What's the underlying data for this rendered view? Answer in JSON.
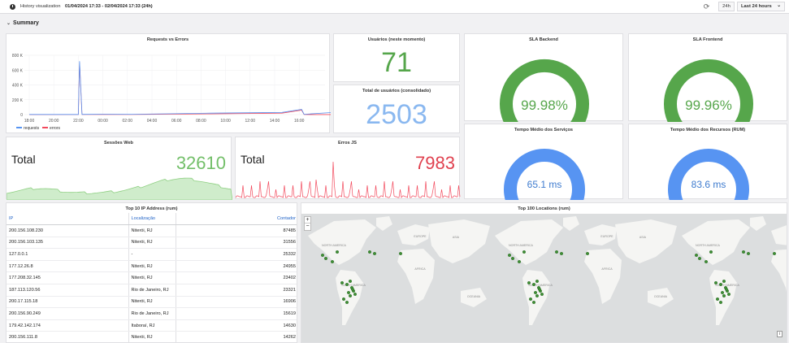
{
  "topbar": {
    "label": "History visualization",
    "range": "01/04/2024 17:33 - 02/04/2024 17:33 (24h)",
    "btn_24h": "24h",
    "btn_last": "Last 24 hours",
    "chevron": "⌄"
  },
  "summary": {
    "title": "Summary",
    "chevron": "⌄"
  },
  "panels": {
    "requests_vs_errors": {
      "title": "Requests vs Errors"
    },
    "usuarios": {
      "title": "Usuários (neste momento)",
      "value": "71",
      "color": "#56a64b"
    },
    "total_usuarios": {
      "title": "Total de usuários (consolidado)",
      "value": "2503",
      "color": "#8ab8f0"
    },
    "sla_backend": {
      "title": "SLA Backend",
      "value": "99.98%",
      "gauge_fraction": 0.9998,
      "color": "#56a64b"
    },
    "sla_frontend": {
      "title": "SLA Frontend",
      "value": "99.96%",
      "gauge_fraction": 0.9996,
      "color": "#56a64b"
    },
    "sessoes_web": {
      "title": "Sessões Web",
      "label": "Total",
      "value": "32610",
      "color": "#73bf69"
    },
    "erros_js": {
      "title": "Erros JS",
      "label": "Total",
      "value": "7983",
      "color": "#e0414f"
    },
    "tempo_servicos": {
      "title": "Tempo Médio dos Serviços",
      "value": "65.1 ms",
      "color": "#5794f2"
    },
    "tempo_recursos": {
      "title": "Tempo Médio dos Recursos (RUM)",
      "value": "83.6 ms",
      "color": "#5794f2"
    },
    "top_ip": {
      "title": "Top 10 IP Address (rum)",
      "columns": [
        "IP",
        "Localização",
        "Contador"
      ],
      "rows": [
        [
          "200.156.108.230",
          "Niterói, RJ",
          "87485"
        ],
        [
          "200.156.103.135",
          "Niterói, RJ",
          "31556"
        ],
        [
          "127.0.0.1",
          "-",
          "25332"
        ],
        [
          "177.12.26.8",
          "Niterói, RJ",
          "24955"
        ],
        [
          "177.208.32.145",
          "Niterói, RJ",
          "23402"
        ],
        [
          "187.113.120.56",
          "Rio de Janeiro, RJ",
          "23321"
        ],
        [
          "200.17.115.18",
          "Niterói, RJ",
          "16906"
        ],
        [
          "200.156.90.249",
          "Rio de Janeiro, RJ",
          "15619"
        ],
        [
          "179.42.142.174",
          "Itaboraí, RJ",
          "14630"
        ],
        [
          "200.156.111.8",
          "Niterói, RJ",
          "14262"
        ]
      ]
    },
    "top_locations": {
      "title": "Top 100 Locations (rum)",
      "zoom_in": "+",
      "zoom_out": "−",
      "info": "i",
      "map_labels": [
        "NORTH AMERICA",
        "EUROPE",
        "ASIA",
        "AFRICA",
        "SOUTH AMERICA",
        "OCEANIA"
      ]
    }
  },
  "chart_data": {
    "type": "line",
    "title": "Requests vs Errors",
    "x": [
      "18:00",
      "20:00",
      "22:00",
      "00:00",
      "02:00",
      "04:00",
      "06:00",
      "08:00",
      "10:00",
      "12:00",
      "14:00",
      "16:00"
    ],
    "yticks": [
      "800 K",
      "600 K",
      "400 K",
      "200 K",
      "0"
    ],
    "ylim": [
      0,
      800000
    ],
    "series": [
      {
        "name": "requests",
        "color": "#5794f2",
        "points": [
          [
            0.0,
            2000
          ],
          [
            2.0,
            2500
          ],
          [
            2.05,
            720000
          ],
          [
            2.15,
            3000
          ],
          [
            3.0,
            6000
          ],
          [
            4.2,
            4000
          ],
          [
            7.4,
            20000
          ],
          [
            10.3,
            30000
          ],
          [
            11.1,
            70000
          ],
          [
            11.2,
            4000
          ],
          [
            12.4,
            30000
          ],
          [
            13.0,
            3000
          ]
        ]
      },
      {
        "name": "errors",
        "color": "#f2495c",
        "points": [
          [
            0.0,
            500
          ],
          [
            2.0,
            800
          ],
          [
            2.05,
            700000
          ],
          [
            2.15,
            1000
          ],
          [
            4.2,
            1000
          ],
          [
            7.4,
            10000
          ],
          [
            10.3,
            20000
          ],
          [
            11.1,
            60000
          ],
          [
            11.2,
            1000
          ],
          [
            13.0,
            500
          ]
        ]
      }
    ],
    "grid": true,
    "legend": "bottom-left"
  }
}
